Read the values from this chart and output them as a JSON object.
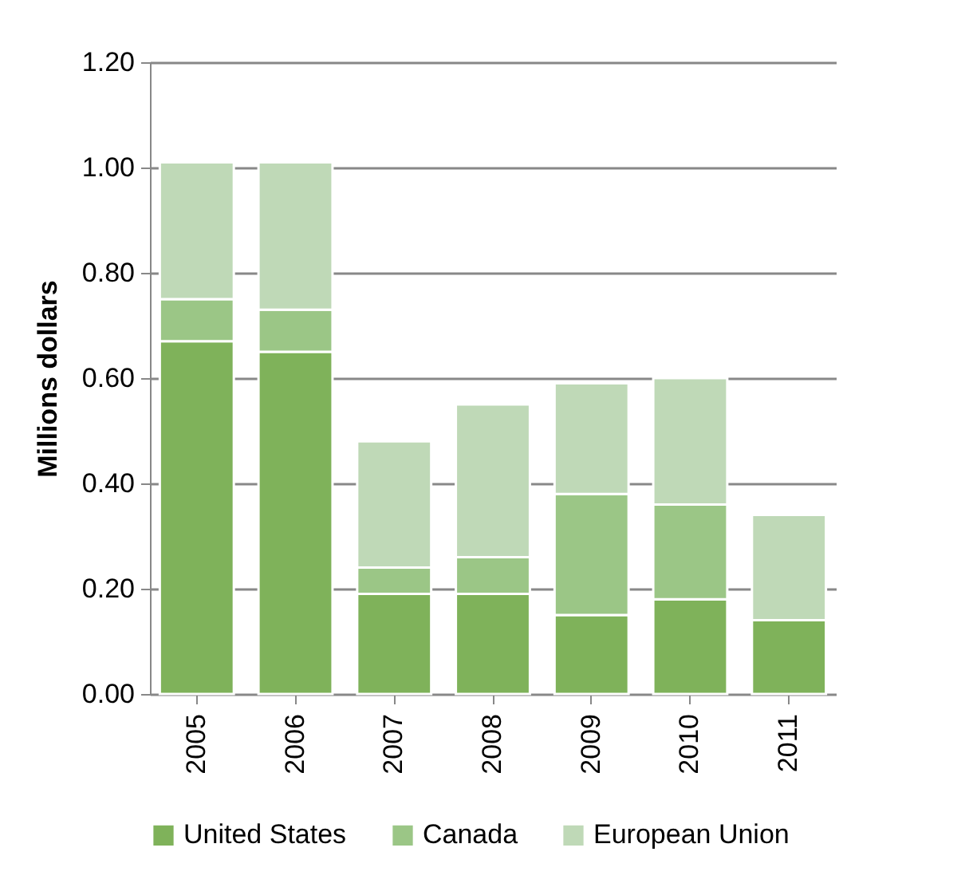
{
  "chart_data": {
    "type": "bar",
    "stacked": true,
    "ylabel": "Millions dollars",
    "categories": [
      "2005",
      "2006",
      "2007",
      "2008",
      "2009",
      "2010",
      "2011"
    ],
    "series": [
      {
        "name": "United States",
        "color": "#7fb25a",
        "values": [
          0.67,
          0.65,
          0.19,
          0.19,
          0.15,
          0.18,
          0.14
        ]
      },
      {
        "name": "Canada",
        "color": "#9bc686",
        "values": [
          0.08,
          0.08,
          0.05,
          0.07,
          0.23,
          0.18,
          0
        ]
      },
      {
        "name": "European Union",
        "color": "#bfd9b7",
        "values": [
          0.26,
          0.28,
          0.24,
          0.29,
          0.21,
          0.24,
          0.2
        ]
      }
    ],
    "ylim": [
      0,
      1.2
    ],
    "yticks": [
      {
        "value": 0,
        "label": "0.00"
      },
      {
        "value": 0.2,
        "label": "0.20"
      },
      {
        "value": 0.4,
        "label": "0.40"
      },
      {
        "value": 0.6,
        "label": "0.60"
      },
      {
        "value": 0.8,
        "label": "0.80"
      },
      {
        "value": 1,
        "label": "1.00"
      },
      {
        "value": 1.2,
        "label": "1.20"
      }
    ],
    "grid": "y",
    "legend": "bottom"
  }
}
